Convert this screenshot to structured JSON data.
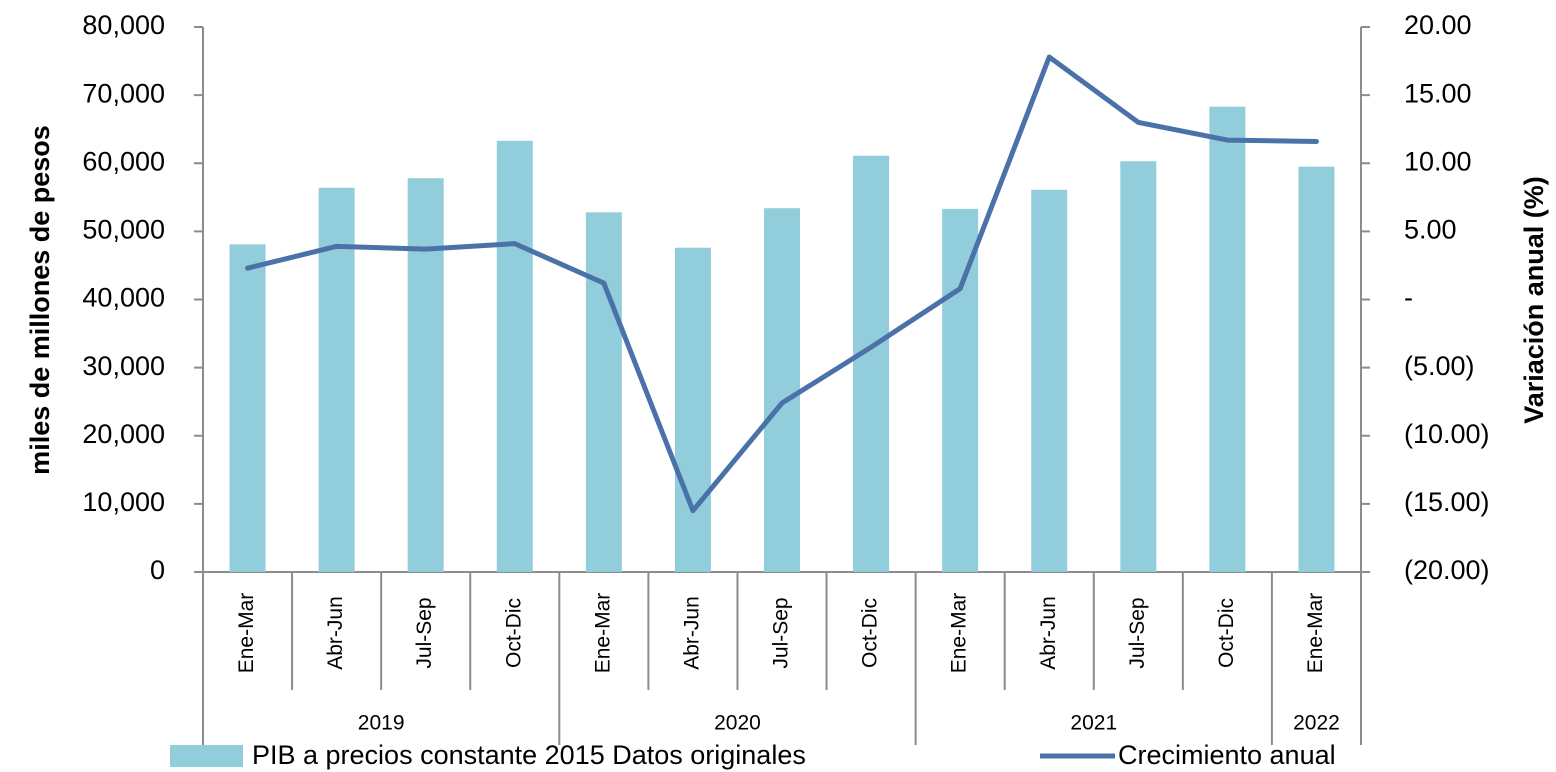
{
  "chart_data": {
    "type": "bar",
    "categories": [
      "Ene-Mar",
      "Abr-Jun",
      "Jul-Sep",
      "Oct-Dic",
      "Ene-Mar",
      "Abr-Jun",
      "Jul-Sep",
      "Oct-Dic",
      "Ene-Mar",
      "Abr-Jun",
      "Jul-Sep",
      "Oct-Dic",
      "Ene-Mar"
    ],
    "years": [
      "2019",
      "2019",
      "2019",
      "2019",
      "2020",
      "2020",
      "2020",
      "2020",
      "2021",
      "2021",
      "2021",
      "2021",
      "2022"
    ],
    "series": [
      {
        "name": "PIB a precios constante 2015 Datos originales",
        "type": "bar",
        "color": "#92cddc",
        "values": [
          48100,
          56400,
          57800,
          63300,
          52800,
          47600,
          53400,
          61100,
          53300,
          56100,
          60300,
          68300,
          59500
        ]
      },
      {
        "name": "Crecimiento anual",
        "type": "line",
        "color": "#4a72a8",
        "axis": "y2",
        "values": [
          2.3,
          3.9,
          3.7,
          4.1,
          1.2,
          -15.5,
          -7.6,
          -3.5,
          0.8,
          17.8,
          13.0,
          11.7,
          11.6
        ]
      }
    ],
    "ylabel": "miles de millones de pesos",
    "y2label": "Variación anual (%)",
    "ylim": [
      0,
      80000
    ],
    "yticks": [
      0,
      {
        "value": 10000,
        "label": "10,000"
      },
      {
        "value": 20000,
        "label": "20,000"
      },
      {
        "value": 30000,
        "label": "30,000"
      },
      {
        "value": 40000,
        "label": "40,000"
      },
      {
        "value": 50000,
        "label": "50,000"
      },
      {
        "value": 60000,
        "label": "60,000"
      },
      {
        "value": 70000,
        "label": "70,000"
      },
      {
        "value": 80000,
        "label": "80,000"
      }
    ],
    "y2lim": [
      -20,
      20
    ],
    "y2ticks": [
      {
        "value": -20,
        "label": "(20.00)"
      },
      {
        "value": -15,
        "label": "(15.00)"
      },
      {
        "value": -10,
        "label": "(10.00)"
      },
      {
        "value": -5,
        "label": "(5.00)"
      },
      {
        "value": 0,
        "label": "-"
      },
      {
        "value": 5,
        "label": "5.00"
      },
      {
        "value": 10,
        "label": "10.00"
      },
      {
        "value": 15,
        "label": "15.00"
      },
      {
        "value": 20,
        "label": "20.00"
      }
    ],
    "grid": false,
    "legend": "bottom"
  }
}
